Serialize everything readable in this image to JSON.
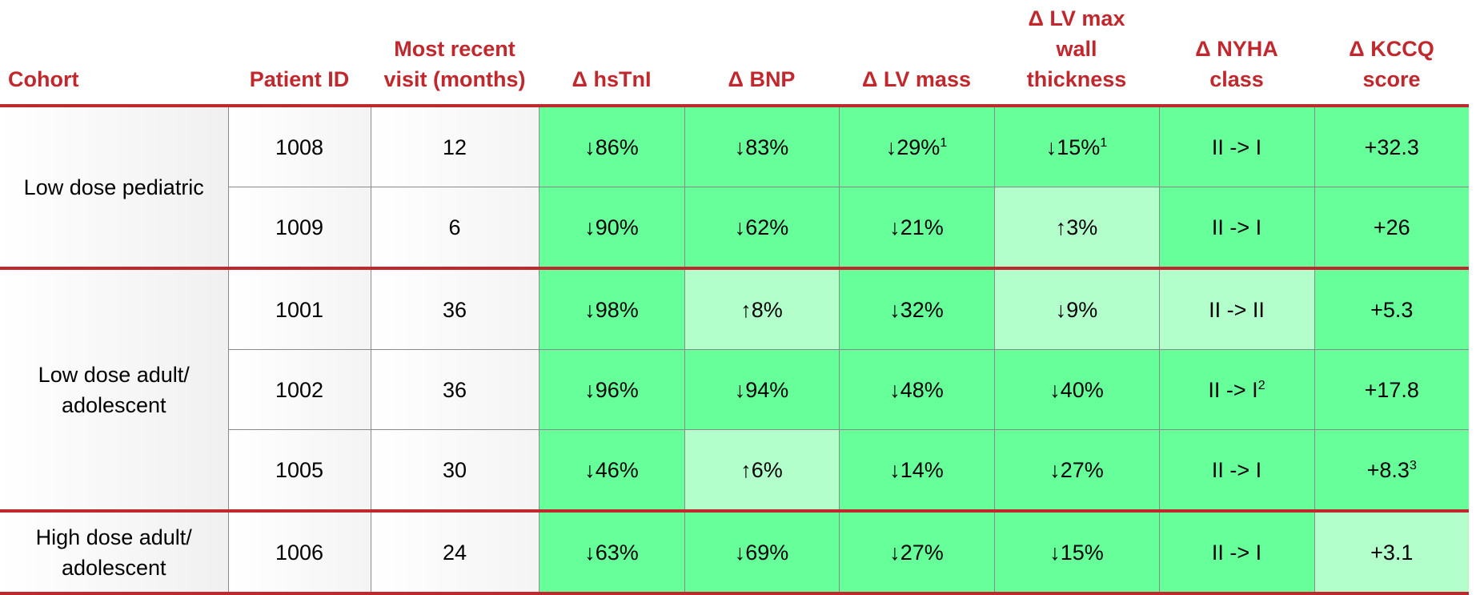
{
  "table": {
    "columns": [
      "Cohort",
      "Patient ID",
      "Most recent visit (months)",
      "Δ hsTnI",
      "Δ BNP",
      "Δ LV mass",
      "Δ LV max wall thickness",
      "Δ NYHA class",
      "Δ KCCQ score"
    ],
    "groups": [
      {
        "cohort": "Low dose pediatric",
        "rows": [
          {
            "patient_id": 1008,
            "visit": 12,
            "cells": [
              {
                "text": "↓86%",
                "color": "#66ff99"
              },
              {
                "text": "↓83%",
                "color": "#66ff99"
              },
              {
                "text": "↓29%",
                "note": "1",
                "color": "#66ff99"
              },
              {
                "text": "↓15%",
                "note": "1",
                "color": "#66ff99"
              },
              {
                "text": "II -> I",
                "color": "#66ff99"
              },
              {
                "text": "+32.3",
                "color": "#66ff99"
              }
            ]
          },
          {
            "patient_id": 1009,
            "visit": 6,
            "cells": [
              {
                "text": "↓90%",
                "color": "#66ff99"
              },
              {
                "text": "↓62%",
                "color": "#66ff99"
              },
              {
                "text": "↓21%",
                "color": "#66ff99"
              },
              {
                "text": "↑3%",
                "color": "#b3ffcc"
              },
              {
                "text": "II -> I",
                "color": "#66ff99"
              },
              {
                "text": "+26",
                "color": "#66ff99"
              }
            ]
          }
        ]
      },
      {
        "cohort": "Low dose adult/ adolescent",
        "rows": [
          {
            "patient_id": 1001,
            "visit": 36,
            "cells": [
              {
                "text": "↓98%",
                "color": "#66ff99"
              },
              {
                "text": "↑8%",
                "color": "#b3ffcc"
              },
              {
                "text": "↓32%",
                "color": "#66ff99"
              },
              {
                "text": "↓9%",
                "color": "#b3ffcc"
              },
              {
                "text": "II -> II",
                "color": "#b3ffcc"
              },
              {
                "text": "+5.3",
                "color": "#66ff99"
              }
            ]
          },
          {
            "patient_id": 1002,
            "visit": 36,
            "cells": [
              {
                "text": "↓96%",
                "color": "#66ff99"
              },
              {
                "text": "↓94%",
                "color": "#66ff99"
              },
              {
                "text": "↓48%",
                "color": "#66ff99"
              },
              {
                "text": "↓40%",
                "color": "#66ff99"
              },
              {
                "text": "II -> I",
                "note": "2",
                "color": "#66ff99"
              },
              {
                "text": "+17.8",
                "color": "#66ff99"
              }
            ]
          },
          {
            "patient_id": 1005,
            "visit": 30,
            "cells": [
              {
                "text": "↓46%",
                "color": "#66ff99"
              },
              {
                "text": "↑6%",
                "color": "#b3ffcc"
              },
              {
                "text": "↓14%",
                "color": "#66ff99"
              },
              {
                "text": "↓27%",
                "color": "#66ff99"
              },
              {
                "text": "II -> I",
                "color": "#66ff99"
              },
              {
                "text": "+8.3",
                "note": "3",
                "color": "#66ff99"
              }
            ]
          }
        ]
      },
      {
        "cohort": "High dose adult/ adolescent",
        "rows": [
          {
            "patient_id": 1006,
            "visit": 24,
            "cells": [
              {
                "text": "↓63%",
                "color": "#66ff99"
              },
              {
                "text": "↓69%",
                "color": "#66ff99"
              },
              {
                "text": "↓27%",
                "color": "#66ff99"
              },
              {
                "text": "↓15%",
                "color": "#66ff99"
              },
              {
                "text": "II -> I",
                "color": "#66ff99"
              },
              {
                "text": "+3.1",
                "color": "#b3ffcc"
              }
            ]
          }
        ]
      }
    ]
  }
}
